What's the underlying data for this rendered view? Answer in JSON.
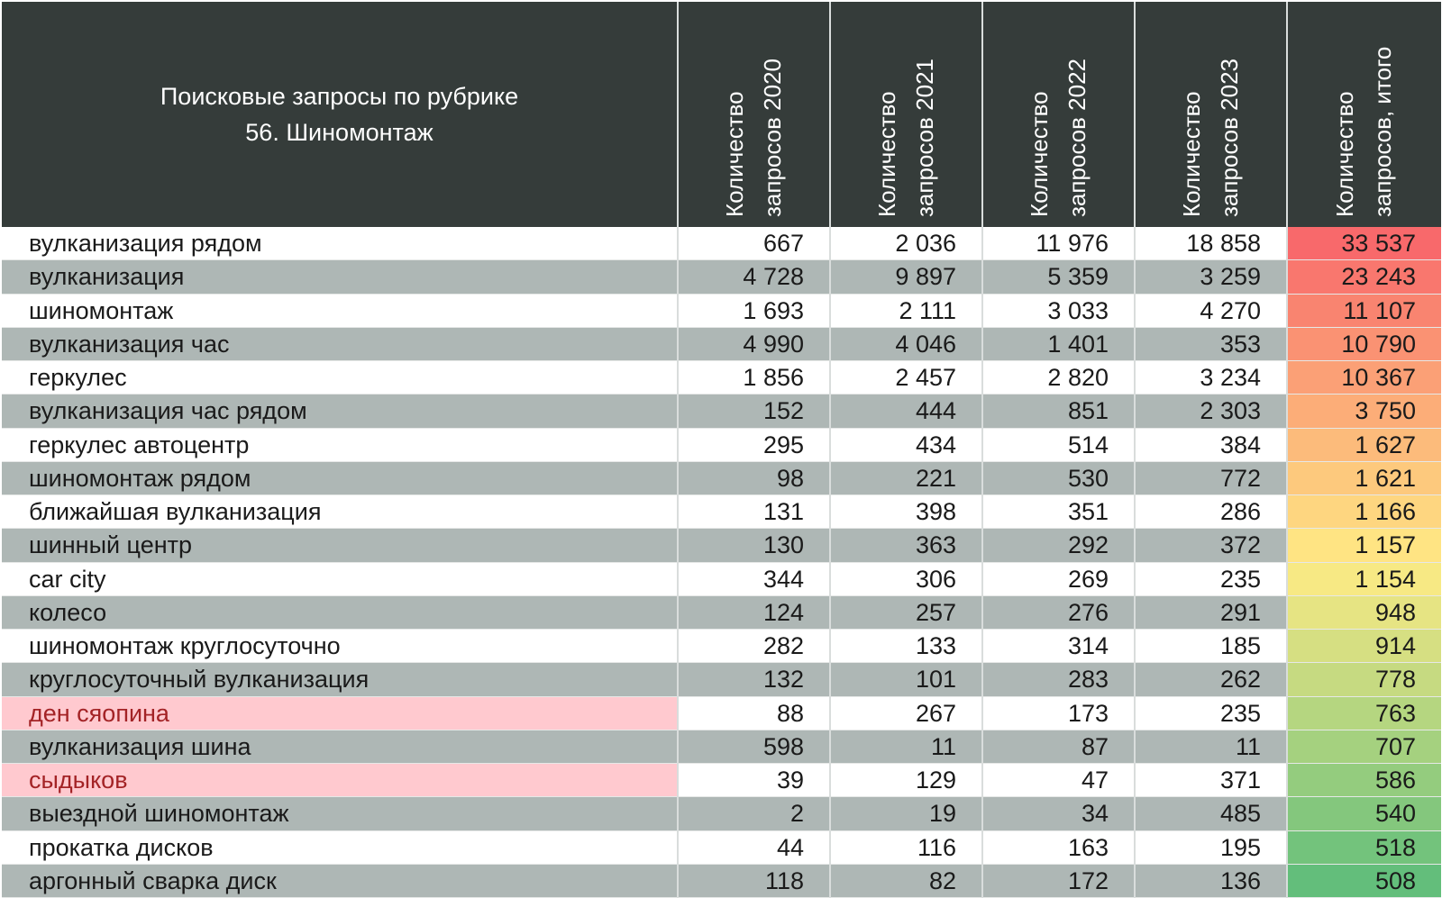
{
  "header": {
    "title_line1": "Поисковые запросы по рубрике",
    "title_line2": "56. Шиномонтаж",
    "columns": [
      "Количество запросов 2020",
      "Количество запросов 2021",
      "Количество запросов 2022",
      "Количество запросов 2023",
      "Количество запросов, итого"
    ]
  },
  "colors": {
    "header_bg": "#353c3a",
    "row_gray": "#aeb7b5",
    "row_white": "#ffffff",
    "flag_bg": "#ffc9cf",
    "flag_text": "#a32326",
    "scale_high": "#f8696b",
    "scale_mid": "#ffeb84",
    "scale_low": "#63be7b"
  },
  "chart_data": {
    "type": "table",
    "title": "Поисковые запросы по рубрике 56. Шиномонтаж",
    "columns": [
      "Количество запросов 2020",
      "Количество запросов 2021",
      "Количество запросов 2022",
      "Количество запросов 2023",
      "Количество запросов, итого"
    ],
    "rows": [
      {
        "label": "вулканизация рядом",
        "values": [
          "667",
          "2 036",
          "11 976",
          "18 858"
        ],
        "total": "33 537",
        "total_value": 33537,
        "flagged": false
      },
      {
        "label": "вулканизация",
        "values": [
          "4 728",
          "9 897",
          "5 359",
          "3 259"
        ],
        "total": "23 243",
        "total_value": 23243,
        "flagged": false
      },
      {
        "label": "шиномонтаж",
        "values": [
          "1 693",
          "2 111",
          "3 033",
          "4 270"
        ],
        "total": "11 107",
        "total_value": 11107,
        "flagged": false
      },
      {
        "label": "вулканизация час",
        "values": [
          "4 990",
          "4 046",
          "1 401",
          "353"
        ],
        "total": "10 790",
        "total_value": 10790,
        "flagged": false
      },
      {
        "label": "геркулес",
        "values": [
          "1 856",
          "2 457",
          "2 820",
          "3 234"
        ],
        "total": "10 367",
        "total_value": 10367,
        "flagged": false
      },
      {
        "label": "вулканизация час рядом",
        "values": [
          "152",
          "444",
          "851",
          "2 303"
        ],
        "total": "3 750",
        "total_value": 3750,
        "flagged": false
      },
      {
        "label": "геркулес автоцентр",
        "values": [
          "295",
          "434",
          "514",
          "384"
        ],
        "total": "1 627",
        "total_value": 1627,
        "flagged": false
      },
      {
        "label": "шиномонтаж рядом",
        "values": [
          "98",
          "221",
          "530",
          "772"
        ],
        "total": "1 621",
        "total_value": 1621,
        "flagged": false
      },
      {
        "label": "ближайшая вулканизация",
        "values": [
          "131",
          "398",
          "351",
          "286"
        ],
        "total": "1 166",
        "total_value": 1166,
        "flagged": false
      },
      {
        "label": "шинный центр",
        "values": [
          "130",
          "363",
          "292",
          "372"
        ],
        "total": "1 157",
        "total_value": 1157,
        "flagged": false
      },
      {
        "label": "car city",
        "values": [
          "344",
          "306",
          "269",
          "235"
        ],
        "total": "1 154",
        "total_value": 1154,
        "flagged": false
      },
      {
        "label": "колесо",
        "values": [
          "124",
          "257",
          "276",
          "291"
        ],
        "total": "948",
        "total_value": 948,
        "flagged": false
      },
      {
        "label": "шиномонтаж круглосуточно",
        "values": [
          "282",
          "133",
          "314",
          "185"
        ],
        "total": "914",
        "total_value": 914,
        "flagged": false
      },
      {
        "label": "круглосуточный вулканизация",
        "values": [
          "132",
          "101",
          "283",
          "262"
        ],
        "total": "778",
        "total_value": 778,
        "flagged": false
      },
      {
        "label": "ден сяопина",
        "values": [
          "88",
          "267",
          "173",
          "235"
        ],
        "total": "763",
        "total_value": 763,
        "flagged": true
      },
      {
        "label": "вулканизация шина",
        "values": [
          "598",
          "11",
          "87",
          "11"
        ],
        "total": "707",
        "total_value": 707,
        "flagged": false
      },
      {
        "label": "сыдыков",
        "values": [
          "39",
          "129",
          "47",
          "371"
        ],
        "total": "586",
        "total_value": 586,
        "flagged": true
      },
      {
        "label": "выездной шиномонтаж",
        "values": [
          "2",
          "19",
          "34",
          "485"
        ],
        "total": "540",
        "total_value": 540,
        "flagged": false
      },
      {
        "label": "прокатка дисков",
        "values": [
          "44",
          "116",
          "163",
          "195"
        ],
        "total": "518",
        "total_value": 518,
        "flagged": false
      },
      {
        "label": "аргонный сварка диск",
        "values": [
          "118",
          "82",
          "172",
          "136"
        ],
        "total": "508",
        "total_value": 508,
        "flagged": false
      }
    ]
  }
}
